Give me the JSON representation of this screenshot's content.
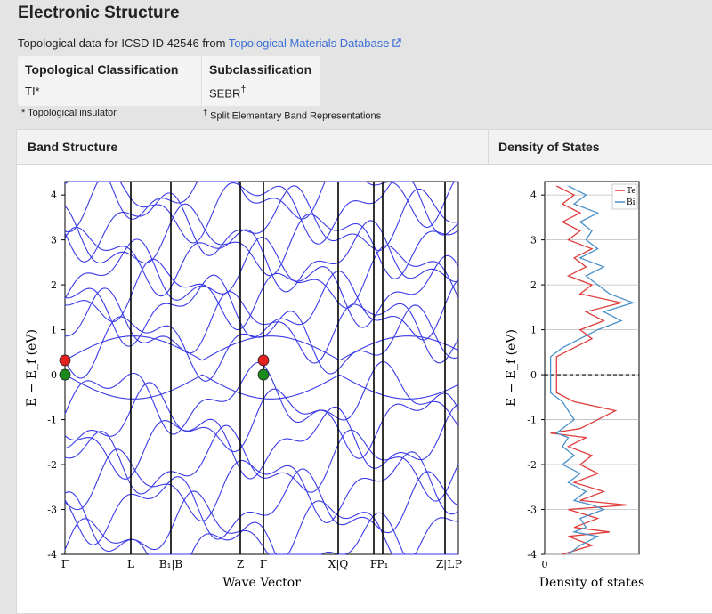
{
  "page": {
    "title": "Electronic Structure",
    "topo_text": "Topological data for ICSD ID 42546 from ",
    "topo_link": "Topological Materials Database"
  },
  "classification": {
    "topo_header": "Topological Classification",
    "topo_value": "TI*",
    "sub_header": "Subclassification",
    "sub_value": "SEBR",
    "sub_value_sup": "†",
    "note1": "* Topological insulator",
    "note2_mark": "†",
    "note2": " Split Elementary Band Representations"
  },
  "panels": {
    "band_title": "Band Structure",
    "dos_title": "Density of States"
  },
  "chart_data": [
    {
      "type": "line",
      "title": "",
      "xlabel": "Wave Vector",
      "ylabel": "E − E_f (eV)",
      "ylim": [
        -4,
        4.3
      ],
      "yticks": [
        -4,
        -3,
        -2,
        -1,
        0,
        1,
        2,
        3,
        4
      ],
      "kpath_labels": [
        "Γ",
        "L",
        "B₁|B",
        "Z",
        "Γ",
        "X|Q",
        "F",
        "P₁",
        "Z|L",
        "P"
      ],
      "grid": false,
      "markers": [
        {
          "label": "Γ",
          "energy": 0.32,
          "color": "#e52020"
        },
        {
          "label": "Γ",
          "energy": 0.0,
          "color": "#1a8a1a"
        },
        {
          "label": "Γ",
          "energy": 0.32,
          "color": "#e52020"
        },
        {
          "label": "Γ",
          "energy": 0.0,
          "color": "#1a8a1a"
        }
      ],
      "colors": {
        "bands": "#3a3ae8"
      }
    },
    {
      "type": "line",
      "title": "",
      "xlabel": "Density of states",
      "ylabel": "E − E_f (eV)",
      "ylim": [
        -4,
        4.3
      ],
      "yticks": [
        -4,
        -3,
        -2,
        -1,
        0,
        1,
        2,
        3,
        4
      ],
      "xticks": [
        0
      ],
      "legend_position": "top-right",
      "fermi_level": 0,
      "series": [
        {
          "name": "Te",
          "color": "#e03c3c",
          "energy": [
            -4.0,
            -3.8,
            -3.6,
            -3.5,
            -3.4,
            -3.2,
            -3.0,
            -2.9,
            -2.8,
            -2.6,
            -2.4,
            -2.2,
            -2.0,
            -1.8,
            -1.6,
            -1.4,
            -1.3,
            -1.2,
            -1.0,
            -0.8,
            -0.6,
            -0.4,
            0.4,
            0.6,
            0.8,
            1.0,
            1.2,
            1.4,
            1.6,
            1.8,
            2.0,
            2.2,
            2.4,
            2.6,
            2.8,
            3.0,
            3.2,
            3.4,
            3.6,
            3.8,
            4.0,
            4.2
          ],
          "values": [
            0.3,
            0.8,
            0.4,
            1.1,
            0.5,
            0.9,
            0.4,
            1.4,
            0.6,
            1.0,
            0.5,
            0.9,
            0.6,
            0.8,
            0.4,
            0.7,
            0.1,
            0.6,
            0.9,
            1.2,
            0.5,
            0.2,
            0.2,
            0.5,
            0.8,
            0.6,
            1.0,
            0.7,
            1.3,
            0.6,
            0.8,
            0.4,
            0.7,
            0.5,
            0.8,
            0.4,
            0.6,
            0.3,
            0.6,
            0.3,
            0.5,
            0.2
          ]
        },
        {
          "name": "Bi",
          "color": "#4a90c8",
          "energy": [
            -4.0,
            -3.8,
            -3.6,
            -3.5,
            -3.4,
            -3.2,
            -3.0,
            -2.9,
            -2.8,
            -2.6,
            -2.4,
            -2.2,
            -2.0,
            -1.8,
            -1.6,
            -1.4,
            -1.3,
            -1.2,
            -1.0,
            -0.8,
            -0.6,
            -0.4,
            0.4,
            0.6,
            0.8,
            1.0,
            1.2,
            1.4,
            1.6,
            1.8,
            2.0,
            2.2,
            2.4,
            2.6,
            2.8,
            3.0,
            3.2,
            3.4,
            3.6,
            3.8,
            4.0,
            4.2
          ],
          "values": [
            0.4,
            0.6,
            0.9,
            0.5,
            0.7,
            0.6,
            1.0,
            0.8,
            0.5,
            0.7,
            0.4,
            0.6,
            0.3,
            0.5,
            0.3,
            0.4,
            0.2,
            0.3,
            0.5,
            0.4,
            0.3,
            0.1,
            0.1,
            0.3,
            0.6,
            0.9,
            1.3,
            1.0,
            1.5,
            1.1,
            0.9,
            0.7,
            1.0,
            0.6,
            0.9,
            0.7,
            0.8,
            0.6,
            0.9,
            0.5,
            0.7,
            0.4
          ]
        }
      ]
    }
  ]
}
